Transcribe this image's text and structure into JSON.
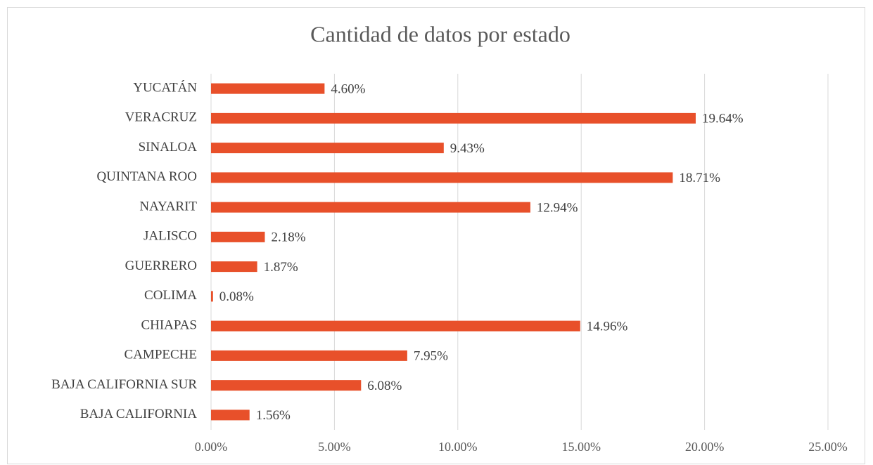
{
  "chart_data": {
    "type": "bar",
    "orientation": "horizontal",
    "title": "Cantidad de datos por estado",
    "categories": [
      "YUCATÁN",
      "VERACRUZ",
      "SINALOA",
      "QUINTANA ROO",
      "NAYARIT",
      "JALISCO",
      "GUERRERO",
      "COLIMA",
      "CHIAPAS",
      "CAMPECHE",
      "BAJA CALIFORNIA SUR",
      "BAJA CALIFORNIA"
    ],
    "values": [
      4.6,
      19.64,
      9.43,
      18.71,
      12.94,
      2.18,
      1.87,
      0.08,
      14.96,
      7.95,
      6.08,
      1.56
    ],
    "value_labels": [
      "4.60%",
      "19.64%",
      "9.43%",
      "18.71%",
      "12.94%",
      "2.18%",
      "1.87%",
      "0.08%",
      "14.96%",
      "7.95%",
      "6.08%",
      "1.56%"
    ],
    "color": "#e8502a",
    "xlim": [
      0,
      25
    ],
    "xticks": [
      {
        "value": 0,
        "label": "0.00%"
      },
      {
        "value": 5,
        "label": "5.00%"
      },
      {
        "value": 10,
        "label": "10.00%"
      },
      {
        "value": 15,
        "label": "15.00%"
      },
      {
        "value": 20,
        "label": "20.00%"
      },
      {
        "value": 25,
        "label": "25.00%"
      }
    ],
    "grid": true
  }
}
